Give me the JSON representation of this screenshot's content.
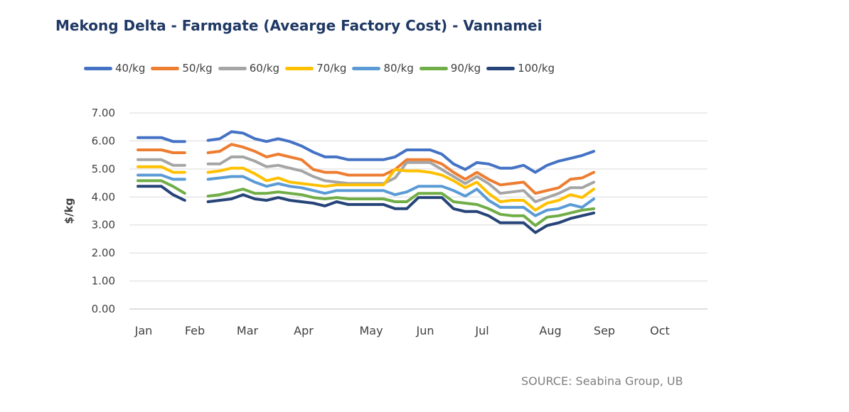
{
  "chart_data": {
    "type": "line",
    "title": "Mekong Delta - Farmgate (Avearge Factory Cost) - Vannamei",
    "ylabel": "$/kg",
    "xlabel": "",
    "ylim": [
      0,
      7
    ],
    "yticks": [
      "0.00",
      "1.00",
      "2.00",
      "3.00",
      "4.00",
      "5.00",
      "6.00",
      "7.00"
    ],
    "x_month_labels": [
      "Jan",
      "Feb",
      "Mar",
      "Apr",
      "May",
      "Jun",
      "Jul",
      "Aug",
      "Sep",
      "Oct"
    ],
    "grid": true,
    "legend_position": "top",
    "x": [
      0,
      1,
      2,
      3,
      4,
      6,
      7,
      8,
      9,
      10,
      11,
      12,
      13,
      14,
      15,
      16,
      17,
      18,
      19,
      20,
      21,
      22,
      23,
      24,
      25,
      26,
      27,
      28,
      29,
      30,
      31,
      32,
      33,
      34,
      35,
      36,
      37,
      38,
      39,
      40
    ],
    "series": [
      {
        "name": "40/kg",
        "color": "#4472C4",
        "values": [
          6.12,
          6.12,
          6.12,
          5.98,
          5.98,
          6.02,
          6.08,
          6.33,
          6.28,
          6.08,
          5.98,
          6.08,
          5.98,
          5.82,
          5.6,
          5.43,
          5.43,
          5.33,
          5.33,
          5.33,
          5.33,
          5.43,
          5.68,
          5.68,
          5.68,
          5.53,
          5.18,
          4.98,
          5.23,
          5.18,
          5.03,
          5.03,
          5.13,
          4.88,
          5.13,
          5.28,
          5.38,
          5.48,
          5.63,
          null
        ]
      },
      {
        "name": "50/kg",
        "color": "#ED7D31",
        "values": [
          5.68,
          5.68,
          5.68,
          5.58,
          5.58,
          5.58,
          5.63,
          5.88,
          5.78,
          5.63,
          5.43,
          5.53,
          5.43,
          5.33,
          4.98,
          4.88,
          4.88,
          4.78,
          4.78,
          4.78,
          4.78,
          4.98,
          5.33,
          5.33,
          5.33,
          5.18,
          4.88,
          4.63,
          4.88,
          4.63,
          4.43,
          4.48,
          4.53,
          4.13,
          4.23,
          4.33,
          4.63,
          4.68,
          4.88,
          null
        ]
      },
      {
        "name": "60/kg",
        "color": "#A5A5A5",
        "values": [
          5.33,
          5.33,
          5.33,
          5.13,
          5.13,
          5.18,
          5.18,
          5.43,
          5.43,
          5.28,
          5.08,
          5.13,
          5.03,
          4.93,
          4.73,
          4.58,
          4.53,
          4.48,
          4.48,
          4.48,
          4.48,
          4.68,
          5.23,
          5.23,
          5.23,
          4.98,
          4.73,
          4.48,
          4.73,
          4.48,
          4.13,
          4.18,
          4.23,
          3.83,
          3.98,
          4.13,
          4.33,
          4.33,
          4.53,
          null
        ]
      },
      {
        "name": "70/kg",
        "color": "#FFC000",
        "values": [
          5.08,
          5.08,
          5.08,
          4.88,
          4.88,
          4.88,
          4.93,
          5.03,
          5.03,
          4.83,
          4.58,
          4.68,
          4.53,
          4.48,
          4.43,
          4.38,
          4.43,
          4.43,
          4.43,
          4.43,
          4.43,
          4.98,
          4.93,
          4.93,
          4.88,
          4.78,
          4.58,
          4.33,
          4.53,
          4.13,
          3.83,
          3.88,
          3.88,
          3.53,
          3.78,
          3.88,
          4.08,
          3.98,
          4.28,
          null
        ]
      },
      {
        "name": "80/kg",
        "color": "#5B9BD5",
        "values": [
          4.78,
          4.78,
          4.78,
          4.63,
          4.63,
          4.63,
          4.68,
          4.73,
          4.73,
          4.53,
          4.38,
          4.48,
          4.38,
          4.33,
          4.23,
          4.13,
          4.23,
          4.23,
          4.23,
          4.23,
          4.23,
          4.08,
          4.18,
          4.38,
          4.38,
          4.38,
          4.23,
          4.03,
          4.28,
          3.88,
          3.63,
          3.63,
          3.63,
          3.33,
          3.53,
          3.58,
          3.73,
          3.63,
          3.93,
          null
        ]
      },
      {
        "name": "90/kg",
        "color": "#70AD47",
        "values": [
          4.58,
          4.58,
          4.58,
          4.38,
          4.13,
          4.03,
          4.08,
          4.18,
          4.28,
          4.13,
          4.13,
          4.18,
          4.13,
          4.08,
          3.98,
          3.93,
          3.98,
          3.93,
          3.93,
          3.93,
          3.93,
          3.83,
          3.83,
          4.13,
          4.13,
          4.13,
          3.83,
          3.78,
          3.73,
          3.58,
          3.38,
          3.33,
          3.33,
          2.98,
          3.28,
          3.33,
          3.43,
          3.53,
          3.58,
          null
        ]
      },
      {
        "name": "100/kg",
        "color": "#264478",
        "values": [
          4.38,
          4.38,
          4.38,
          4.08,
          3.88,
          3.83,
          3.88,
          3.93,
          4.08,
          3.93,
          3.88,
          3.98,
          3.88,
          3.83,
          3.78,
          3.68,
          3.83,
          3.73,
          3.73,
          3.73,
          3.73,
          3.58,
          3.58,
          3.98,
          3.98,
          3.98,
          3.58,
          3.48,
          3.48,
          3.33,
          3.08,
          3.08,
          3.08,
          2.73,
          2.98,
          3.08,
          3.23,
          3.33,
          3.43,
          null
        ]
      }
    ]
  },
  "source_note": "SOURCE: Seabina Group, UB"
}
